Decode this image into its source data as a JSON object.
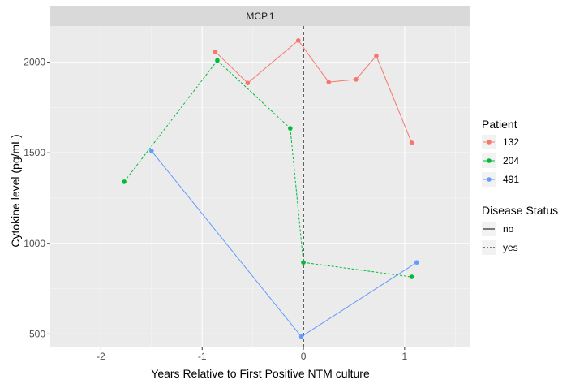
{
  "chart_data": {
    "type": "line",
    "facet_title": "MCP.1",
    "xlabel": "Years Relative to First Positive NTM culture",
    "ylabel": "Cytokine level (pg/mL)",
    "xlim": [
      -2.5,
      1.65
    ],
    "ylim": [
      430,
      2200
    ],
    "x_ticks": [
      -2,
      -1,
      0,
      1
    ],
    "x_tick_labels": [
      "-2",
      "-1",
      "0",
      "1"
    ],
    "y_ticks": [
      500,
      1000,
      1500,
      2000
    ],
    "y_tick_labels": [
      "500",
      "1000",
      "1500",
      "2000"
    ],
    "vline_x": 0,
    "grid": true,
    "background": "#ebebeb",
    "legend_position": "right",
    "legend_patient_title": "Patient",
    "legend_status_title": "Disease Status",
    "status_levels": [
      {
        "label": "no",
        "dash": "solid"
      },
      {
        "label": "yes",
        "dash": "dotted"
      }
    ],
    "series": [
      {
        "name": "132",
        "color": "#f8766d",
        "x": [
          -0.87,
          -0.55,
          -0.05,
          0.25,
          0.52,
          0.72,
          1.07
        ],
        "y": [
          2058,
          1885,
          2120,
          1890,
          1905,
          2035,
          1555
        ],
        "status": [
          "no",
          "no",
          "no",
          "no",
          "no",
          "no"
        ]
      },
      {
        "name": "204",
        "color": "#00ba38",
        "x": [
          -1.77,
          -0.85,
          -0.13,
          0.0,
          1.07
        ],
        "y": [
          1340,
          2010,
          1635,
          895,
          815
        ],
        "status": [
          "yes",
          "yes",
          "yes",
          "yes"
        ]
      },
      {
        "name": "491",
        "color": "#619cff",
        "x": [
          -1.5,
          -0.02,
          1.12
        ],
        "y": [
          1510,
          485,
          895
        ],
        "status": [
          "no",
          "no"
        ]
      }
    ]
  }
}
